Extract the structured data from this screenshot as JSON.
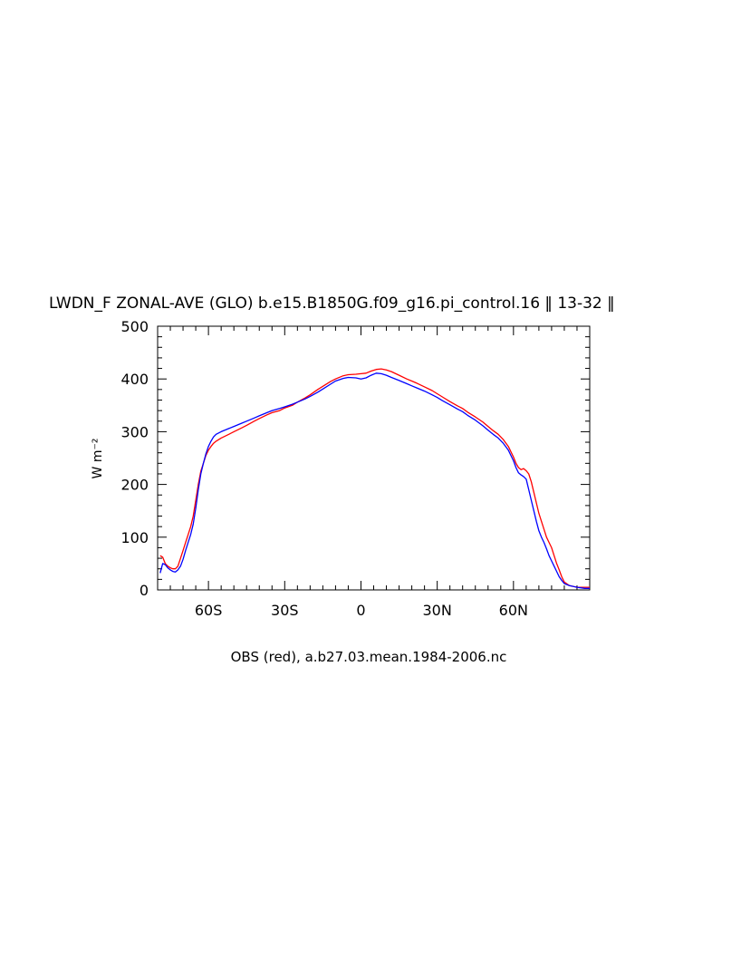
{
  "chart_data": {
    "type": "line",
    "title": "LWDN_F ZONAL-AVE (GLO) b.e15.B1850G.f09_g16.pi_control.16 ‖ 13-32 ‖",
    "ylabel": "W m⁻²",
    "xlabel": "",
    "note": "OBS (red), a.b27.03.mean.1984-2006.nc",
    "xlim": [
      -80,
      90
    ],
    "ylim": [
      0,
      500
    ],
    "x_ticks": [
      {
        "value": -60,
        "label": "60S"
      },
      {
        "value": -30,
        "label": "30S"
      },
      {
        "value": 0,
        "label": "0"
      },
      {
        "value": 30,
        "label": "30N"
      },
      {
        "value": 60,
        "label": "60N"
      }
    ],
    "y_ticks": [
      {
        "value": 0,
        "label": "0"
      },
      {
        "value": 100,
        "label": "100"
      },
      {
        "value": 200,
        "label": "200"
      },
      {
        "value": 300,
        "label": "300"
      },
      {
        "value": 400,
        "label": "400"
      },
      {
        "value": 500,
        "label": "500"
      }
    ],
    "grid": false,
    "series": [
      {
        "color": "#ff0000",
        "points": [
          [
            -79,
            65
          ],
          [
            -78,
            62
          ],
          [
            -77,
            50
          ],
          [
            -76,
            45
          ],
          [
            -75,
            42
          ],
          [
            -74,
            40
          ],
          [
            -73,
            40
          ],
          [
            -72,
            45
          ],
          [
            -71,
            60
          ],
          [
            -70,
            75
          ],
          [
            -69,
            90
          ],
          [
            -68,
            105
          ],
          [
            -67,
            120
          ],
          [
            -66,
            140
          ],
          [
            -65,
            170
          ],
          [
            -64,
            200
          ],
          [
            -63,
            225
          ],
          [
            -62,
            240
          ],
          [
            -61,
            255
          ],
          [
            -60,
            265
          ],
          [
            -59,
            272
          ],
          [
            -58,
            278
          ],
          [
            -57,
            282
          ],
          [
            -55,
            288
          ],
          [
            -52,
            295
          ],
          [
            -50,
            300
          ],
          [
            -47,
            307
          ],
          [
            -45,
            312
          ],
          [
            -42,
            320
          ],
          [
            -40,
            325
          ],
          [
            -37,
            332
          ],
          [
            -35,
            336
          ],
          [
            -32,
            340
          ],
          [
            -30,
            345
          ],
          [
            -27,
            350
          ],
          [
            -25,
            356
          ],
          [
            -22,
            364
          ],
          [
            -20,
            370
          ],
          [
            -17,
            380
          ],
          [
            -15,
            386
          ],
          [
            -12,
            395
          ],
          [
            -10,
            400
          ],
          [
            -7,
            406
          ],
          [
            -5,
            408
          ],
          [
            -2,
            409
          ],
          [
            0,
            410
          ],
          [
            2,
            411
          ],
          [
            4,
            415
          ],
          [
            6,
            418
          ],
          [
            8,
            419
          ],
          [
            10,
            417
          ],
          [
            12,
            414
          ],
          [
            15,
            407
          ],
          [
            18,
            400
          ],
          [
            20,
            396
          ],
          [
            22,
            392
          ],
          [
            25,
            385
          ],
          [
            28,
            378
          ],
          [
            30,
            372
          ],
          [
            32,
            366
          ],
          [
            35,
            357
          ],
          [
            38,
            349
          ],
          [
            40,
            344
          ],
          [
            42,
            337
          ],
          [
            45,
            328
          ],
          [
            48,
            318
          ],
          [
            50,
            310
          ],
          [
            52,
            302
          ],
          [
            54,
            295
          ],
          [
            56,
            285
          ],
          [
            58,
            272
          ],
          [
            59,
            262
          ],
          [
            60,
            252
          ],
          [
            61,
            240
          ],
          [
            62,
            232
          ],
          [
            63,
            228
          ],
          [
            64,
            230
          ],
          [
            65,
            226
          ],
          [
            66,
            220
          ],
          [
            67,
            205
          ],
          [
            68,
            185
          ],
          [
            69,
            165
          ],
          [
            70,
            145
          ],
          [
            71,
            130
          ],
          [
            72,
            115
          ],
          [
            73,
            100
          ],
          [
            74,
            90
          ],
          [
            75,
            80
          ],
          [
            76,
            65
          ],
          [
            77,
            50
          ],
          [
            78,
            38
          ],
          [
            79,
            25
          ],
          [
            80,
            15
          ],
          [
            82,
            8
          ],
          [
            85,
            5
          ],
          [
            88,
            5
          ],
          [
            90,
            5
          ]
        ]
      },
      {
        "color": "#0000ff",
        "points": [
          [
            -79,
            32
          ],
          [
            -78,
            50
          ],
          [
            -77,
            48
          ],
          [
            -76,
            42
          ],
          [
            -75,
            38
          ],
          [
            -74,
            35
          ],
          [
            -73,
            34
          ],
          [
            -72,
            38
          ],
          [
            -71,
            45
          ],
          [
            -70,
            58
          ],
          [
            -69,
            75
          ],
          [
            -68,
            90
          ],
          [
            -67,
            105
          ],
          [
            -66,
            125
          ],
          [
            -65,
            155
          ],
          [
            -64,
            190
          ],
          [
            -63,
            220
          ],
          [
            -62,
            240
          ],
          [
            -61,
            258
          ],
          [
            -60,
            272
          ],
          [
            -59,
            282
          ],
          [
            -58,
            290
          ],
          [
            -57,
            295
          ],
          [
            -55,
            300
          ],
          [
            -52,
            306
          ],
          [
            -50,
            310
          ],
          [
            -47,
            316
          ],
          [
            -45,
            320
          ],
          [
            -42,
            326
          ],
          [
            -40,
            330
          ],
          [
            -37,
            336
          ],
          [
            -35,
            340
          ],
          [
            -32,
            344
          ],
          [
            -30,
            347
          ],
          [
            -27,
            352
          ],
          [
            -25,
            356
          ],
          [
            -22,
            362
          ],
          [
            -20,
            367
          ],
          [
            -17,
            375
          ],
          [
            -15,
            381
          ],
          [
            -12,
            390
          ],
          [
            -10,
            396
          ],
          [
            -7,
            401
          ],
          [
            -5,
            403
          ],
          [
            -2,
            402
          ],
          [
            0,
            400
          ],
          [
            2,
            402
          ],
          [
            4,
            407
          ],
          [
            6,
            411
          ],
          [
            8,
            410
          ],
          [
            10,
            407
          ],
          [
            12,
            403
          ],
          [
            15,
            397
          ],
          [
            18,
            391
          ],
          [
            20,
            387
          ],
          [
            22,
            383
          ],
          [
            25,
            377
          ],
          [
            28,
            370
          ],
          [
            30,
            365
          ],
          [
            32,
            359
          ],
          [
            35,
            351
          ],
          [
            38,
            343
          ],
          [
            40,
            338
          ],
          [
            42,
            331
          ],
          [
            45,
            322
          ],
          [
            48,
            311
          ],
          [
            50,
            303
          ],
          [
            52,
            295
          ],
          [
            54,
            288
          ],
          [
            56,
            278
          ],
          [
            58,
            265
          ],
          [
            59,
            255
          ],
          [
            60,
            245
          ],
          [
            61,
            232
          ],
          [
            62,
            222
          ],
          [
            63,
            218
          ],
          [
            64,
            215
          ],
          [
            65,
            210
          ],
          [
            66,
            190
          ],
          [
            67,
            170
          ],
          [
            68,
            150
          ],
          [
            69,
            130
          ],
          [
            70,
            112
          ],
          [
            71,
            100
          ],
          [
            72,
            90
          ],
          [
            73,
            78
          ],
          [
            74,
            65
          ],
          [
            75,
            55
          ],
          [
            76,
            45
          ],
          [
            77,
            35
          ],
          [
            78,
            25
          ],
          [
            79,
            18
          ],
          [
            80,
            12
          ],
          [
            82,
            8
          ],
          [
            85,
            5
          ],
          [
            88,
            3
          ],
          [
            90,
            3
          ]
        ]
      }
    ]
  }
}
